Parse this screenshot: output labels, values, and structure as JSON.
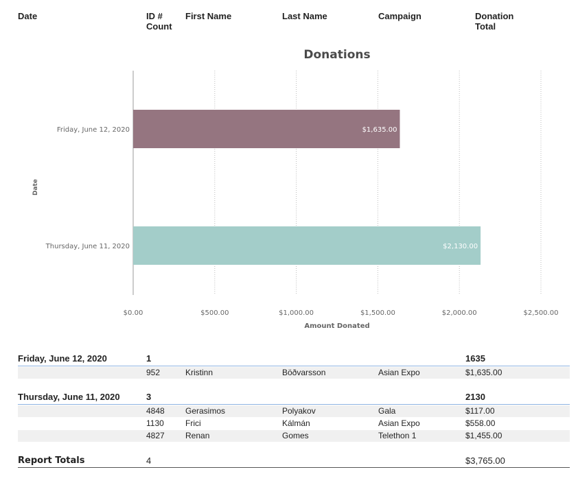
{
  "header": {
    "date": "Date",
    "id_count": "ID #\nCount",
    "first_name": "First Name",
    "last_name": "Last Name",
    "campaign": "Campaign",
    "donation_total": "Donation\nTotal"
  },
  "chart_data": {
    "type": "bar",
    "orientation": "horizontal",
    "title": "Donations",
    "xlabel": "Amount Donated",
    "ylabel": "Date",
    "categories": [
      "Friday, June 12, 2020",
      "Thursday, June 11, 2020"
    ],
    "values": [
      1635,
      2130
    ],
    "data_labels": [
      "$1,635.00",
      "$2,130.00"
    ],
    "colors": [
      "#957580",
      "#a3cdc9"
    ],
    "xlim": [
      0,
      2500
    ],
    "xticks": [
      0,
      500,
      1000,
      1500,
      2000,
      2500
    ],
    "xtick_labels": [
      "$0.00",
      "$500.00",
      "$1,000.00",
      "$1,500.00",
      "$2,000.00",
      "$2,500.00"
    ],
    "grid": "vertical dotted"
  },
  "groups": [
    {
      "date": "Friday, June 12, 2020",
      "count": "1",
      "total": "1635",
      "rows": [
        {
          "id": "952",
          "first": "Kristinn",
          "last": "Böðvarsson",
          "campaign": "Asian Expo",
          "amount": "$1,635.00"
        }
      ]
    },
    {
      "date": "Thursday, June 11, 2020",
      "count": "3",
      "total": "2130",
      "rows": [
        {
          "id": "4848",
          "first": "Gerasimos",
          "last": "Polyakov",
          "campaign": "Gala",
          "amount": "$117.00"
        },
        {
          "id": "1130",
          "first": "Frici",
          "last": "Kálmán",
          "campaign": "Asian Expo",
          "amount": "$558.00"
        },
        {
          "id": "4827",
          "first": "Renan",
          "last": "Gomes",
          "campaign": "Telethon 1",
          "amount": "$1,455.00"
        }
      ]
    }
  ],
  "totals": {
    "label": "Report Totals",
    "count": "4",
    "amount": "$3,765.00"
  }
}
